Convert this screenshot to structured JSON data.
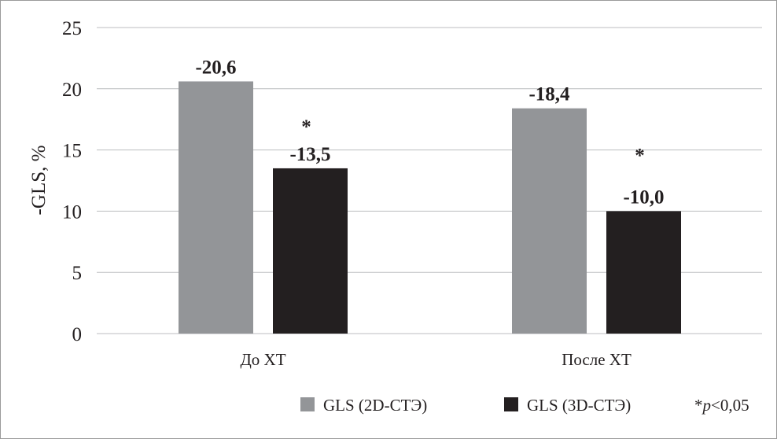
{
  "chart_data": {
    "type": "bar",
    "title": "",
    "xlabel": "",
    "ylabel": "-GLS, %",
    "ylim": [
      0,
      25
    ],
    "yticks": [
      "0",
      "5",
      "10",
      "15",
      "20",
      "25"
    ],
    "grid": true,
    "categories": [
      "До ХТ",
      "После ХТ"
    ],
    "series": [
      {
        "name": "GLS (2D-СТЭ)",
        "color": "#939598",
        "values": [
          20.6,
          18.4
        ],
        "labels": [
          "-20,6",
          "-18,4"
        ],
        "marks": [
          "",
          ""
        ]
      },
      {
        "name": "GLS (3D-СТЭ)",
        "color": "#231f20",
        "values": [
          13.5,
          10.0
        ],
        "labels": [
          "-13,5",
          "-10,0"
        ],
        "marks": [
          "*",
          "*"
        ]
      }
    ],
    "legend_position": "bottom-right",
    "annotation": {
      "prefix": "*",
      "italic": "p",
      "suffix": "<0,05"
    }
  }
}
